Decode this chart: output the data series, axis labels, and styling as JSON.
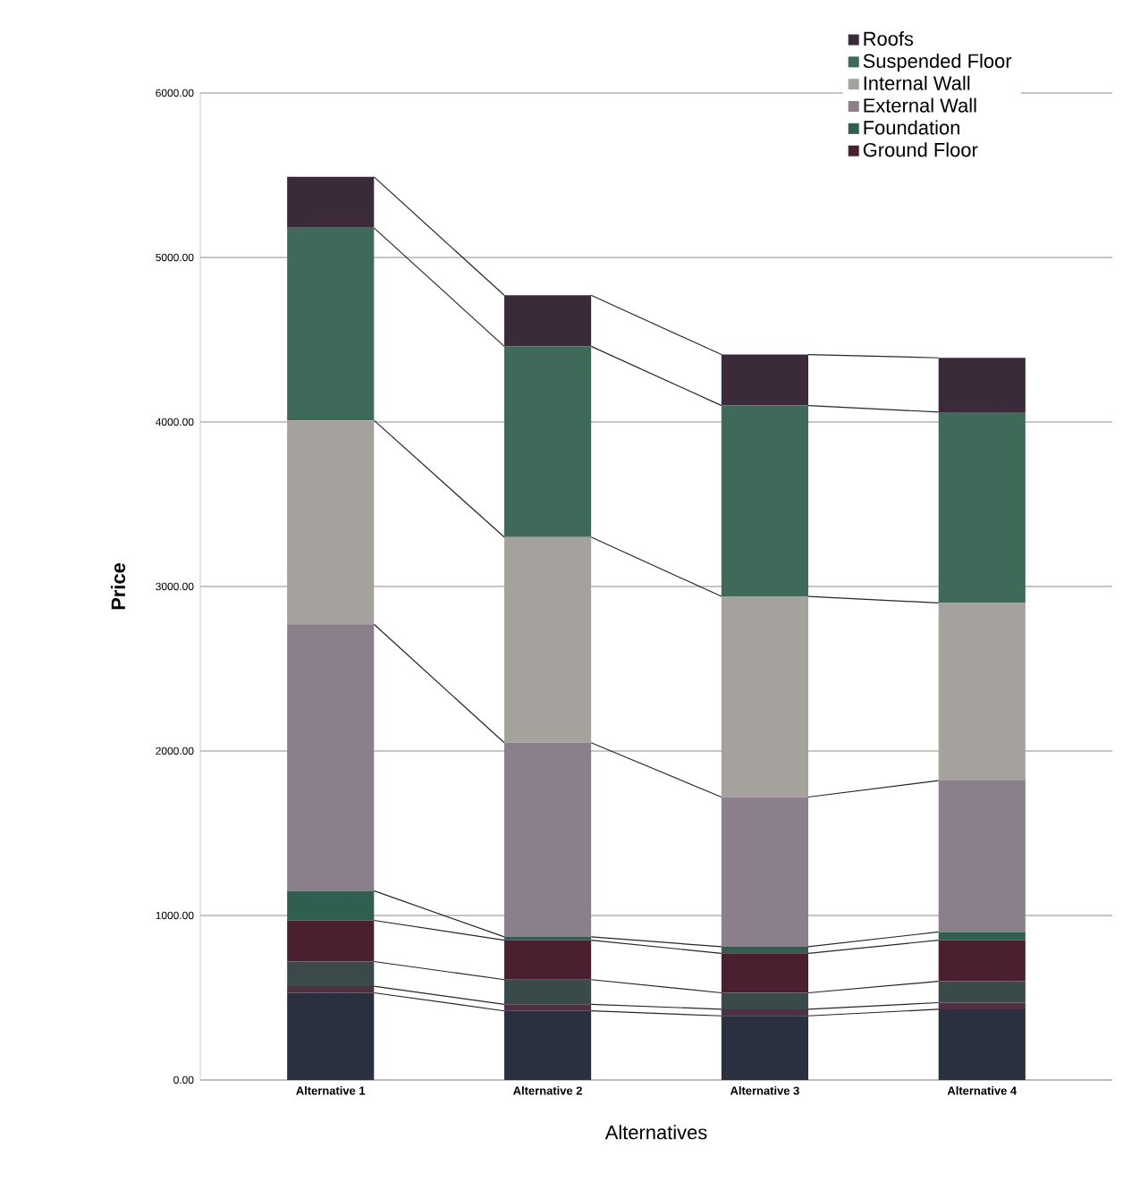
{
  "chart_data": {
    "type": "bar",
    "stacked": true,
    "xlabel": "Alternatives",
    "ylabel": "Price",
    "categories": [
      "Alternative 1",
      "Alternative 2",
      "Alternative 3",
      "Alternative 4"
    ],
    "series": [
      {
        "color": "#2a3040",
        "values": [
          530,
          420,
          390,
          430
        ]
      },
      {
        "color": "#503040",
        "values": [
          40,
          40,
          40,
          40
        ]
      },
      {
        "color": "#3a4a4a",
        "values": [
          150,
          150,
          100,
          130
        ]
      },
      {
        "name": "Ground Floor",
        "color": "#4a2030",
        "values": [
          250,
          240,
          240,
          250
        ]
      },
      {
        "name": "Foundation",
        "color": "#2f5f50",
        "values": [
          180,
          20,
          40,
          50
        ]
      },
      {
        "name": "External Wall",
        "color": "#8a7f8a",
        "values": [
          1620,
          1180,
          910,
          920
        ]
      },
      {
        "name": "Internal Wall",
        "color": "#a5a29e",
        "values": [
          1240,
          1250,
          1220,
          1080
        ]
      },
      {
        "name": "Suspended Floor",
        "color": "#3f6a5a",
        "values": [
          1170,
          1160,
          1160,
          1160
        ]
      },
      {
        "name": "Roofs",
        "color": "#3a2a3a",
        "values": [
          310,
          310,
          310,
          330
        ]
      }
    ],
    "ylim": [
      0,
      6000
    ],
    "yticks": [
      {
        "value": 0,
        "label": "0.00"
      },
      {
        "value": 1000,
        "label": "1000.00"
      },
      {
        "value": 2000,
        "label": "2000.00"
      },
      {
        "value": 3000,
        "label": "3000.00"
      },
      {
        "value": 4000,
        "label": "4000.00"
      },
      {
        "value": 5000,
        "label": "5000.00"
      },
      {
        "value": 6000,
        "label": "6000.00"
      }
    ],
    "grid": "y",
    "legend": "top right"
  }
}
